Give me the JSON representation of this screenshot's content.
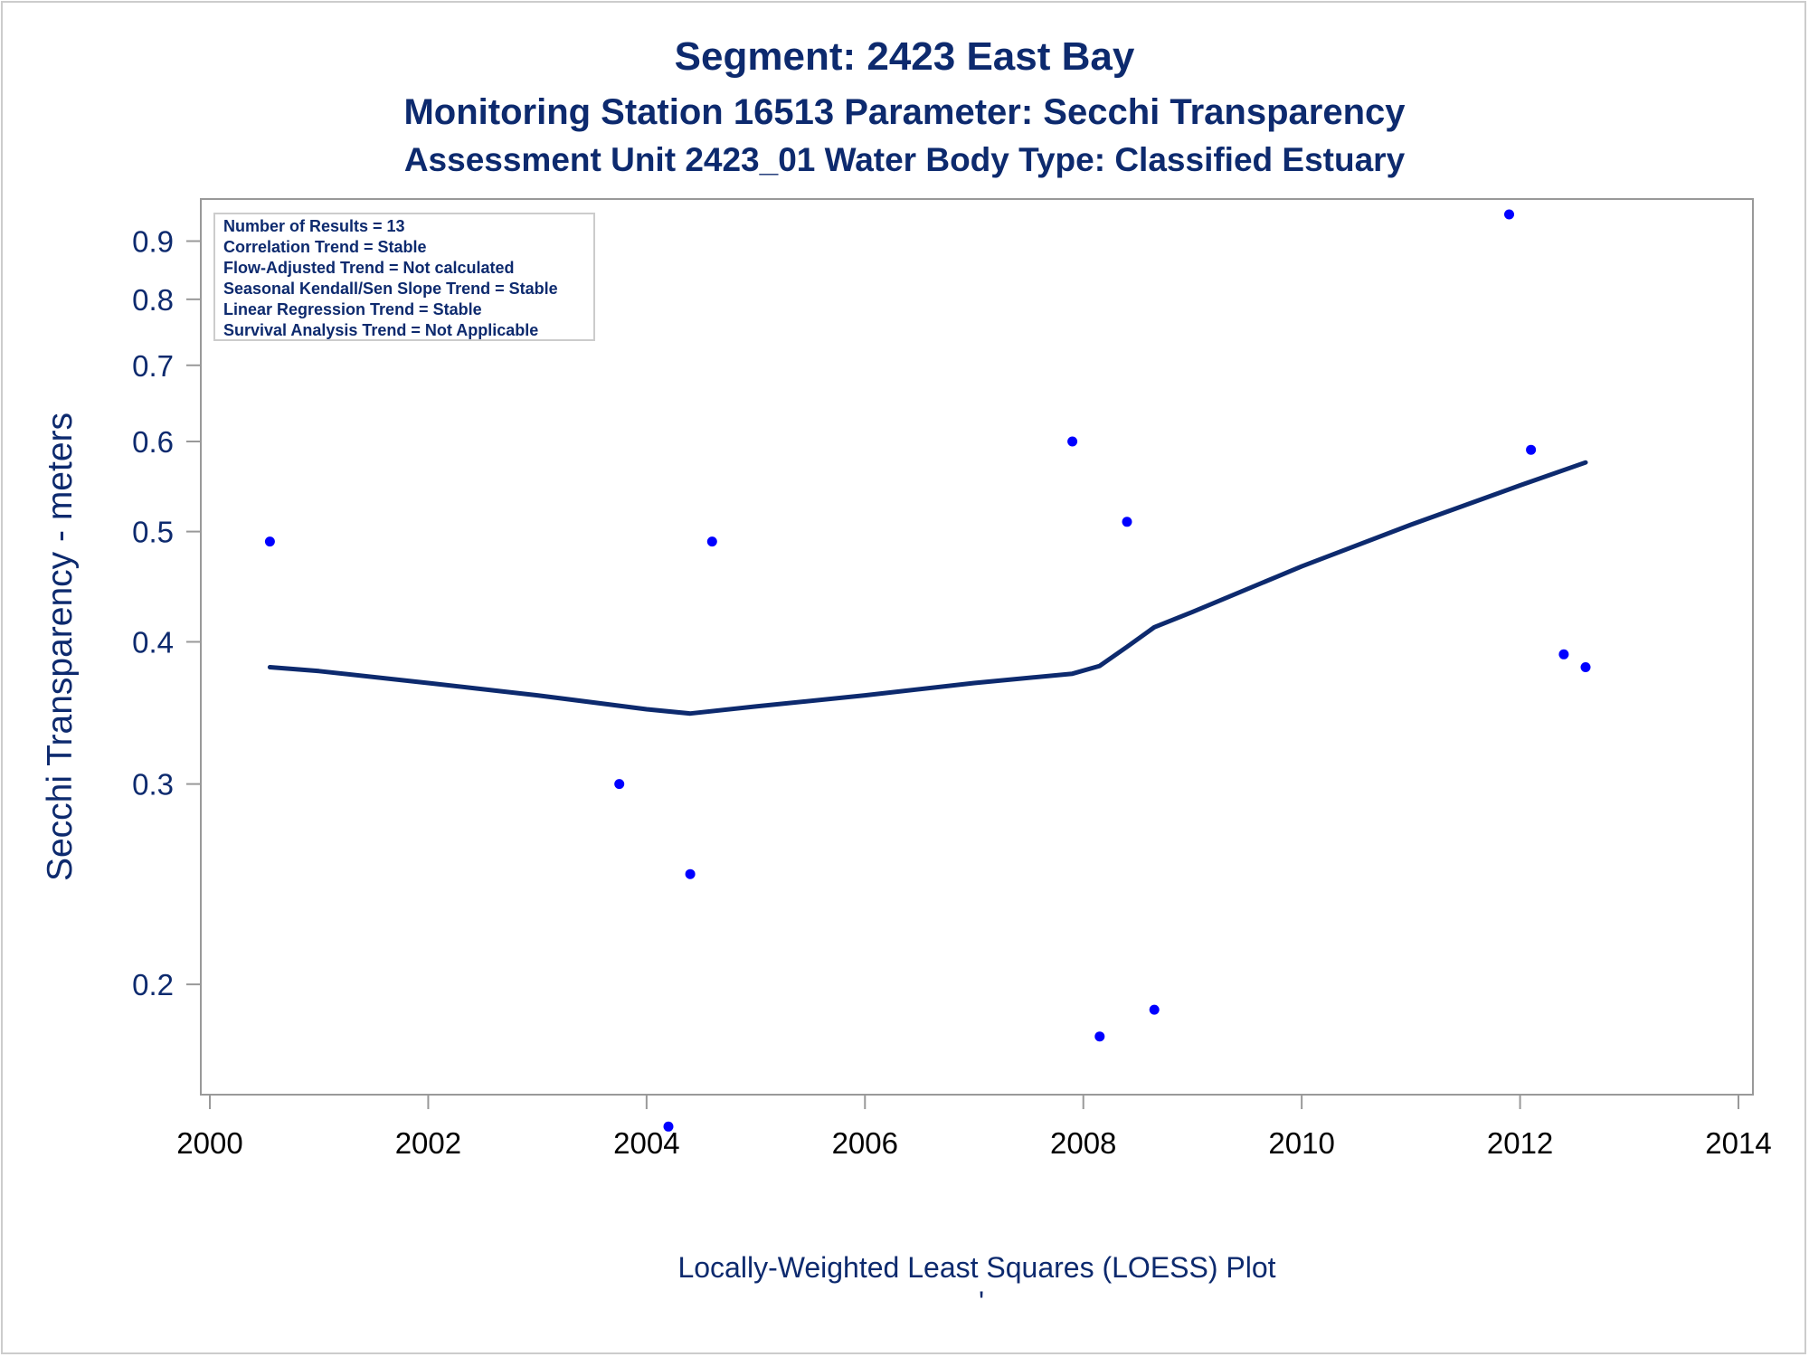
{
  "titles": {
    "line1": "Segment: 2423  East Bay",
    "line2": "Monitoring Station 16513 Parameter: Secchi Transparency",
    "line3": "Assessment Unit 2423_01   Water Body Type: Classified Estuary"
  },
  "inset_lines": [
    "Number of Results = 13",
    "Correlation Trend = Stable",
    "Flow-Adjusted Trend = Not calculated",
    "Seasonal Kendall/Sen Slope Trend = Stable",
    "Linear Regression Trend = Stable",
    "Survival Analysis Trend = Not Applicable"
  ],
  "footnote": "Locally-Weighted Least Squares (LOESS) Plot",
  "footnote_mark": "'",
  "colors": {
    "text": "#0d2a6e",
    "points": "#0000ff",
    "loess": "#0d2a6e",
    "axis": "#999999"
  },
  "chart_data": {
    "type": "scatter",
    "ylabel": "Secchi Transparency - meters",
    "xlabel": "",
    "yscale": "log",
    "xlim": [
      2000,
      2014
    ],
    "ylim": [
      0.16,
      0.98
    ],
    "xticks": [
      "2000",
      "2002",
      "2004",
      "2006",
      "2008",
      "2010",
      "2012",
      "2014"
    ],
    "yticks": [
      "0.2",
      "0.3",
      "0.4",
      "0.5",
      "0.6",
      "0.7",
      "0.8",
      "0.9"
    ],
    "grid": false,
    "series": [
      {
        "type": "scatter",
        "points": [
          {
            "x": 2000.55,
            "y": 0.49
          },
          {
            "x": 2003.75,
            "y": 0.3
          },
          {
            "x": 2004.2,
            "y": 0.15
          },
          {
            "x": 2004.4,
            "y": 0.25
          },
          {
            "x": 2004.6,
            "y": 0.49
          },
          {
            "x": 2007.9,
            "y": 0.6
          },
          {
            "x": 2008.15,
            "y": 0.18
          },
          {
            "x": 2008.4,
            "y": 0.51
          },
          {
            "x": 2008.65,
            "y": 0.19
          },
          {
            "x": 2011.9,
            "y": 0.95
          },
          {
            "x": 2012.1,
            "y": 0.59
          },
          {
            "x": 2012.4,
            "y": 0.39
          },
          {
            "x": 2012.6,
            "y": 0.38
          }
        ]
      },
      {
        "type": "line",
        "points": [
          {
            "x": 2000.55,
            "y": 0.38
          },
          {
            "x": 2001.0,
            "y": 0.377
          },
          {
            "x": 2002.0,
            "y": 0.368
          },
          {
            "x": 2003.0,
            "y": 0.359
          },
          {
            "x": 2004.0,
            "y": 0.349
          },
          {
            "x": 2004.4,
            "y": 0.346
          },
          {
            "x": 2005.0,
            "y": 0.351
          },
          {
            "x": 2006.0,
            "y": 0.359
          },
          {
            "x": 2007.0,
            "y": 0.368
          },
          {
            "x": 2007.9,
            "y": 0.375
          },
          {
            "x": 2008.15,
            "y": 0.381
          },
          {
            "x": 2008.4,
            "y": 0.396
          },
          {
            "x": 2008.65,
            "y": 0.412
          },
          {
            "x": 2009.0,
            "y": 0.425
          },
          {
            "x": 2010.0,
            "y": 0.466
          },
          {
            "x": 2011.0,
            "y": 0.507
          },
          {
            "x": 2012.0,
            "y": 0.549
          },
          {
            "x": 2012.6,
            "y": 0.575
          }
        ]
      }
    ]
  }
}
